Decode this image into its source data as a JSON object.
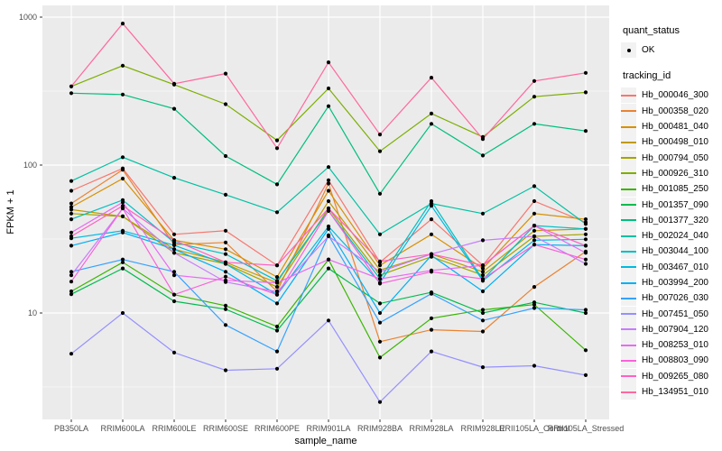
{
  "axes": {
    "x_title": "sample_name",
    "y_title": "FPKM + 1",
    "y_tick_labels": [
      "1000",
      "100",
      "10"
    ]
  },
  "legends": {
    "quant_status": {
      "title": "quant_status",
      "items": [
        {
          "label": "OK",
          "marker": "black-point"
        }
      ]
    },
    "tracking_id": {
      "title": "tracking_id"
    }
  },
  "colors": {
    "panel_bg": "#EBEBEB",
    "grid": "#FFFFFF",
    "tick_label": "#4D4D4D",
    "point": "#000000",
    "legend_key_bg": "#F2F2F2"
  },
  "chart_data": {
    "type": "line",
    "title": "",
    "xlabel": "sample_name",
    "ylabel": "FPKM + 1",
    "y_scale": "log10",
    "ylim": [
      1.9,
      1200
    ],
    "y_major_ticks": [
      1000,
      100,
      10
    ],
    "y_minor_ticks": [
      316.23,
      31.623,
      3.1623
    ],
    "grid": "on",
    "legend_position": "right",
    "point_marker": "black-dot",
    "categories": [
      "PB350LA",
      "RRIM600LA",
      "RRIM600LE",
      "RRIM600SE",
      "RRIM600PE",
      "RRIM901LA",
      "RRIM928BA",
      "RRIM928LA",
      "RRIM928LE",
      "RRII105LA_Control",
      "RRII105LA_Stressed"
    ],
    "series": [
      {
        "name": "Hb_000046_300",
        "color": "#F8766D",
        "values": [
          67,
          95,
          34,
          36,
          21,
          79,
          22,
          43,
          21,
          57,
          41
        ]
      },
      {
        "name": "Hb_000358_020",
        "color": "#EA8331",
        "values": [
          55,
          93,
          29,
          30,
          14,
          75,
          6.4,
          7.7,
          7.5,
          15,
          26
        ]
      },
      {
        "name": "Hb_000481_040",
        "color": "#D89000",
        "values": [
          52,
          81,
          31,
          27,
          17.5,
          67,
          21,
          34,
          20,
          47,
          43
        ]
      },
      {
        "name": "Hb_000498_010",
        "color": "#C09B00",
        "values": [
          50,
          45,
          27,
          22,
          16,
          57,
          19.5,
          25,
          19,
          36,
          37
        ]
      },
      {
        "name": "Hb_000794_050",
        "color": "#A3A500",
        "values": [
          47,
          45,
          25.5,
          21.5,
          15,
          51,
          18,
          24,
          18,
          33,
          34
        ]
      },
      {
        "name": "Hb_000926_310",
        "color": "#7CAE00",
        "values": [
          340,
          470,
          350,
          258,
          147,
          330,
          124,
          223,
          155,
          290,
          310
        ]
      },
      {
        "name": "Hb_001085_250",
        "color": "#39B600",
        "values": [
          14,
          22,
          13.3,
          11.2,
          8.1,
          23,
          5,
          9.2,
          10.5,
          11.4,
          5.6
        ]
      },
      {
        "name": "Hb_001357_090",
        "color": "#00BB4E",
        "values": [
          13.4,
          20,
          12,
          10.6,
          7.6,
          20,
          11.6,
          13.8,
          10,
          11.8,
          10
        ]
      },
      {
        "name": "Hb_001377_320",
        "color": "#00BF7D",
        "values": [
          306,
          300,
          240,
          115,
          74,
          250,
          64,
          190,
          116,
          190,
          170
        ]
      },
      {
        "name": "Hb_002024_040",
        "color": "#00C1A3",
        "values": [
          78,
          113,
          82,
          63,
          48,
          97,
          34,
          55,
          47,
          72,
          40
        ]
      },
      {
        "name": "Hb_003044_100",
        "color": "#00BFC4",
        "values": [
          43,
          58,
          30,
          25,
          16.5,
          49,
          17,
          57,
          16.8,
          39,
          37
        ]
      },
      {
        "name": "Hb_003467_010",
        "color": "#00BAE0",
        "values": [
          32,
          36,
          28.7,
          21.5,
          13.3,
          38.5,
          16,
          53,
          16.5,
          31,
          31.5
        ]
      },
      {
        "name": "Hb_003994_200",
        "color": "#00B0F6",
        "values": [
          28.5,
          35,
          27,
          19,
          11.6,
          37,
          10,
          24.5,
          14,
          29,
          28.5
        ]
      },
      {
        "name": "Hb_007026_030",
        "color": "#35A2FF",
        "values": [
          19,
          23,
          19,
          8.3,
          5.5,
          33.5,
          8.6,
          13.5,
          8.9,
          10.8,
          10.5
        ]
      },
      {
        "name": "Hb_007451_050",
        "color": "#9590FF",
        "values": [
          5.3,
          10,
          5.4,
          4.1,
          4.2,
          8.9,
          2.5,
          5.5,
          4.3,
          4.4,
          3.8
        ]
      },
      {
        "name": "Hb_007904_120",
        "color": "#C77CFF",
        "values": [
          18,
          51,
          25.5,
          16.2,
          13.9,
          33,
          19,
          25,
          31,
          33,
          21.5
        ]
      },
      {
        "name": "Hb_008253_010",
        "color": "#E76BF3",
        "values": [
          35,
          56,
          18,
          16.6,
          16,
          23,
          17,
          19.4,
          21,
          39,
          25.5
        ]
      },
      {
        "name": "Hb_008803_090",
        "color": "#FA62DB",
        "values": [
          16.3,
          51,
          13.3,
          17.6,
          13.3,
          49,
          15.8,
          19,
          17,
          29,
          23
        ]
      },
      {
        "name": "Hb_009265_080",
        "color": "#FF61C3",
        "values": [
          33,
          53,
          31,
          22,
          21,
          51,
          22.3,
          25,
          21,
          39,
          28.5
        ]
      },
      {
        "name": "Hb_134951_010",
        "color": "#FF689F",
        "values": [
          340,
          905,
          355,
          415,
          130,
          495,
          161,
          390,
          150,
          370,
          420
        ]
      }
    ]
  }
}
